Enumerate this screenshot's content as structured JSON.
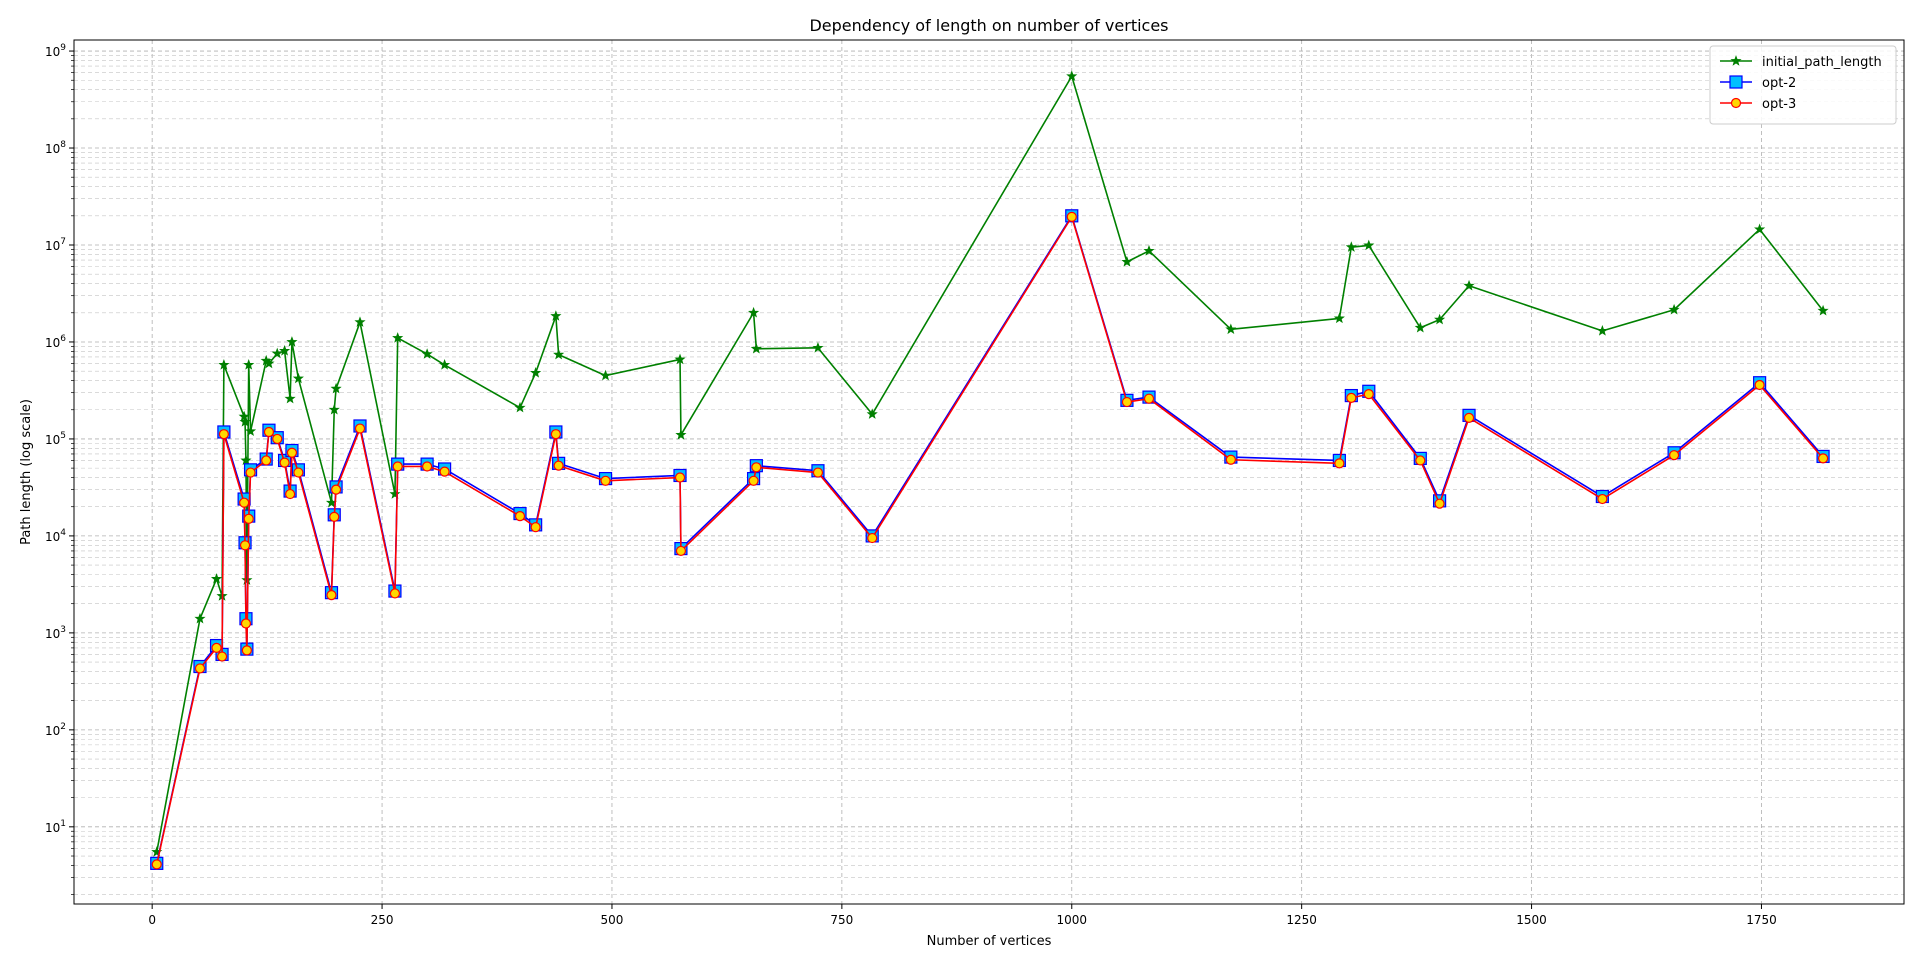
{
  "chart_data": {
    "type": "line",
    "title": "Dependency of length on number of vertices",
    "xlabel": "Number of vertices",
    "ylabel": "Path length (log scale)",
    "yscale": "log",
    "xlim": [
      -85,
      1905
    ],
    "ylim": [
      1.6,
      1300000000.0
    ],
    "x_ticks": [
      0,
      250,
      500,
      750,
      1000,
      1250,
      1500,
      1750
    ],
    "y_ticks": [
      {
        "value": 10,
        "base": "10",
        "exp": "1"
      },
      {
        "value": 100,
        "base": "10",
        "exp": "2"
      },
      {
        "value": 1000,
        "base": "10",
        "exp": "3"
      },
      {
        "value": 10000,
        "base": "10",
        "exp": "4"
      },
      {
        "value": 100000,
        "base": "10",
        "exp": "5"
      },
      {
        "value": 1000000,
        "base": "10",
        "exp": "6"
      },
      {
        "value": 10000000,
        "base": "10",
        "exp": "7"
      },
      {
        "value": 100000000,
        "base": "10",
        "exp": "8"
      },
      {
        "value": 1000000000,
        "base": "10",
        "exp": "9"
      }
    ],
    "grid": "major and minor, dashed",
    "legend_position": "top-right",
    "series": [
      {
        "name": "initial_path_length",
        "color": "#008000",
        "marker": "star",
        "x": [
          5,
          52,
          70,
          76,
          78,
          100,
          101,
          102,
          103,
          105,
          107,
          124,
          127,
          136,
          144,
          150,
          152,
          159,
          195,
          198,
          200,
          226,
          264,
          267,
          299,
          318,
          400,
          417,
          439,
          442,
          493,
          574,
          575,
          654,
          657,
          724,
          783,
          1000,
          1060,
          1084,
          1173,
          1291,
          1304,
          1323,
          1379,
          1400,
          1432,
          1577,
          1655,
          1748,
          1817
        ],
        "values": [
          5.5,
          1400,
          3600,
          2400,
          580000,
          170000,
          150000,
          60000,
          3500,
          580000,
          120000,
          640000,
          600000,
          760000,
          810000,
          260000,
          1000000,
          420000,
          22000,
          200000,
          330000,
          1600000,
          27000,
          1100000,
          750000,
          580000,
          210000,
          480000,
          1850000,
          740000,
          450000,
          660000,
          110000,
          2000000,
          850000,
          870000,
          180000,
          550000000,
          6700000,
          8700000,
          1350000,
          1750000,
          9500000,
          9900000,
          1400000,
          1700000,
          3800000,
          1300000,
          2150000,
          14500000,
          2100000
        ]
      },
      {
        "name": "opt-2",
        "color": "#0000ff",
        "marker": "square",
        "face": "#00bfff",
        "x": [
          5,
          52,
          70,
          76,
          78,
          100,
          101,
          102,
          103,
          105,
          107,
          124,
          127,
          136,
          144,
          150,
          152,
          159,
          195,
          198,
          200,
          226,
          264,
          267,
          299,
          318,
          400,
          417,
          439,
          442,
          493,
          574,
          575,
          654,
          657,
          724,
          783,
          1000,
          1060,
          1084,
          1173,
          1291,
          1304,
          1323,
          1379,
          1400,
          1432,
          1577,
          1655,
          1748,
          1817
        ],
        "values": [
          4.2,
          450,
          740,
          600,
          118000,
          24000,
          8500,
          1400,
          680,
          16000,
          48000,
          62000,
          123000,
          103000,
          60000,
          29000,
          76000,
          48000,
          2600,
          16500,
          32000,
          136000,
          2700,
          55000,
          55000,
          49000,
          17000,
          13000,
          118000,
          56000,
          39000,
          42000,
          7400,
          39000,
          53000,
          47000,
          10000,
          20000000,
          250000,
          270000,
          65000,
          60000,
          280000,
          310000,
          63000,
          23000,
          175000,
          25500,
          72000,
          380000,
          66000
        ]
      },
      {
        "name": "opt-3",
        "color": "#ff0000",
        "marker": "circle",
        "face": "#ffd700",
        "x": [
          5,
          52,
          70,
          76,
          78,
          100,
          101,
          102,
          103,
          105,
          107,
          124,
          127,
          136,
          144,
          150,
          152,
          159,
          195,
          198,
          200,
          226,
          264,
          267,
          299,
          318,
          400,
          417,
          439,
          442,
          493,
          574,
          575,
          654,
          657,
          724,
          783,
          1000,
          1060,
          1084,
          1173,
          1291,
          1304,
          1323,
          1379,
          1400,
          1432,
          1577,
          1655,
          1748,
          1817
        ],
        "values": [
          4.1,
          430,
          700,
          570,
          112000,
          22000,
          8000,
          1250,
          660,
          15000,
          45000,
          60000,
          118000,
          100000,
          57000,
          27000,
          72000,
          45000,
          2450,
          15700,
          30000,
          128000,
          2550,
          52000,
          52000,
          46000,
          16000,
          12300,
          112000,
          53000,
          37000,
          40000,
          7000,
          37000,
          51000,
          45000,
          9500,
          19500000,
          240000,
          260000,
          61000,
          56000,
          265000,
          290000,
          60000,
          21500,
          165000,
          24000,
          68000,
          360000,
          63000
        ]
      }
    ]
  }
}
